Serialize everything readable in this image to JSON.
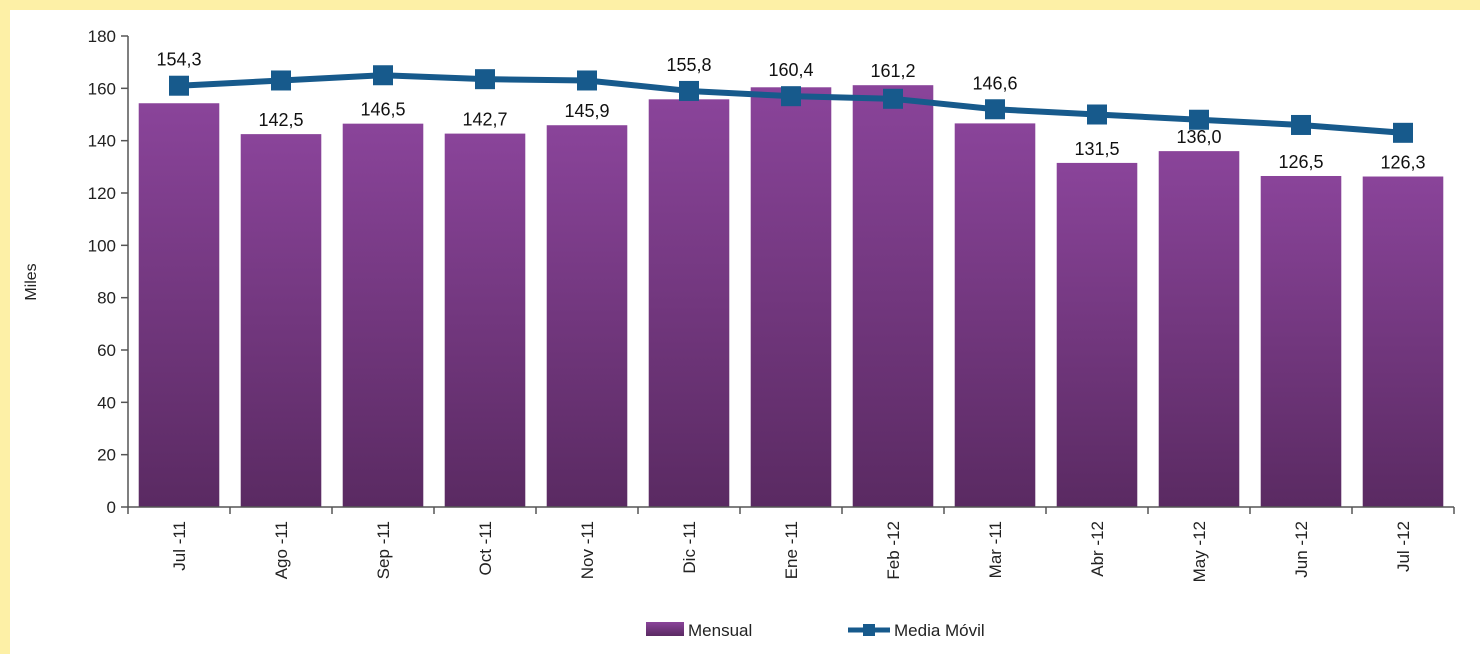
{
  "chart_data": {
    "type": "bar",
    "categories": [
      "Jul -11",
      "Ago -11",
      "Sep -11",
      "Oct -11",
      "Nov -11",
      "Dic -11",
      "Ene -11",
      "Feb -12",
      "Mar -11",
      "Abr -12",
      "May -12",
      "Jun -12",
      "Jul -12"
    ],
    "series": [
      {
        "name": "Mensual",
        "type": "bar",
        "values": [
          154.3,
          142.5,
          146.5,
          142.7,
          145.9,
          155.8,
          160.4,
          161.2,
          146.6,
          131.5,
          136.0,
          126.5,
          126.3
        ],
        "labels": [
          "154,3",
          "142,5",
          "146,5",
          "142,7",
          "145,9",
          "155,8",
          "160,4",
          "161,2",
          "146,6",
          "131,5",
          "136,0",
          "126,5",
          "126,3"
        ],
        "color": "#7a3a86"
      },
      {
        "name": "Media Móvil",
        "type": "line",
        "values": [
          161,
          163,
          165,
          163.5,
          163,
          159,
          157,
          156,
          152,
          150,
          148,
          146,
          143
        ],
        "color": "#175a8c"
      }
    ],
    "ylabel": "Miles",
    "ylim": [
      0,
      180
    ],
    "yticks": [
      "0",
      "20",
      "40",
      "60",
      "80",
      "100",
      "120",
      "140",
      "160",
      "180"
    ],
    "grid": false,
    "legend": "bottom"
  }
}
